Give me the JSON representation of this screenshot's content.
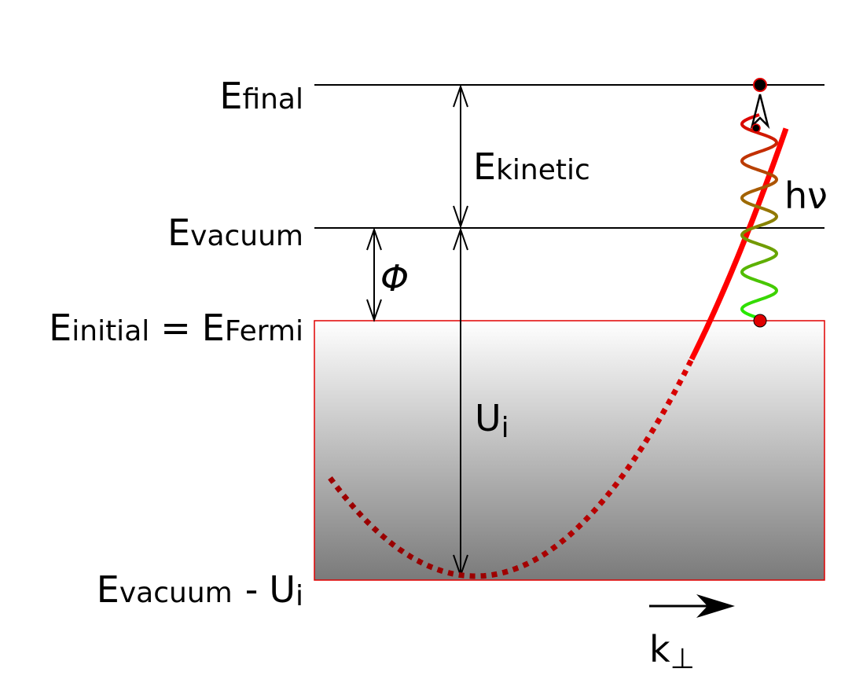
{
  "diagram": {
    "labels": {
      "e_final": {
        "main": "E",
        "sub": "final"
      },
      "e_kinetic": {
        "main": "E",
        "sub": "kinetic"
      },
      "e_vacuum": {
        "main": "E",
        "sub": "vacuum"
      },
      "photon": {
        "main": "hν"
      },
      "phi": {
        "main": "Φ"
      },
      "e_initial": {
        "main": "E",
        "sub": "initial",
        "equals": "=",
        "rhs_main": "E",
        "rhs_sub": "Fermi"
      },
      "u_i": {
        "main": "U",
        "sub": "i"
      },
      "e_vacuum_minus_u": {
        "main": "E",
        "sub": "vacuum",
        "minus": "-",
        "rhs_main": "U",
        "rhs_sub": "i"
      },
      "k_perp": {
        "main": "k",
        "sub": "⊥"
      }
    },
    "colors": {
      "line": "#000000",
      "band_outline": "#e00000",
      "band_gradient_top": "#ffffff",
      "band_gradient_bottom": "#7a7a7a",
      "dispersion_solid": "#ff0000",
      "dispersion_dotted_dark": "#8b0000",
      "dispersion_dotted_light": "#e00000",
      "photon_top": "#e00000",
      "photon_bottom": "#22ee00",
      "point": "#000000"
    },
    "icons": {
      "photon": "wavy-photon-icon",
      "k_arrow": "arrow-right-icon"
    }
  }
}
